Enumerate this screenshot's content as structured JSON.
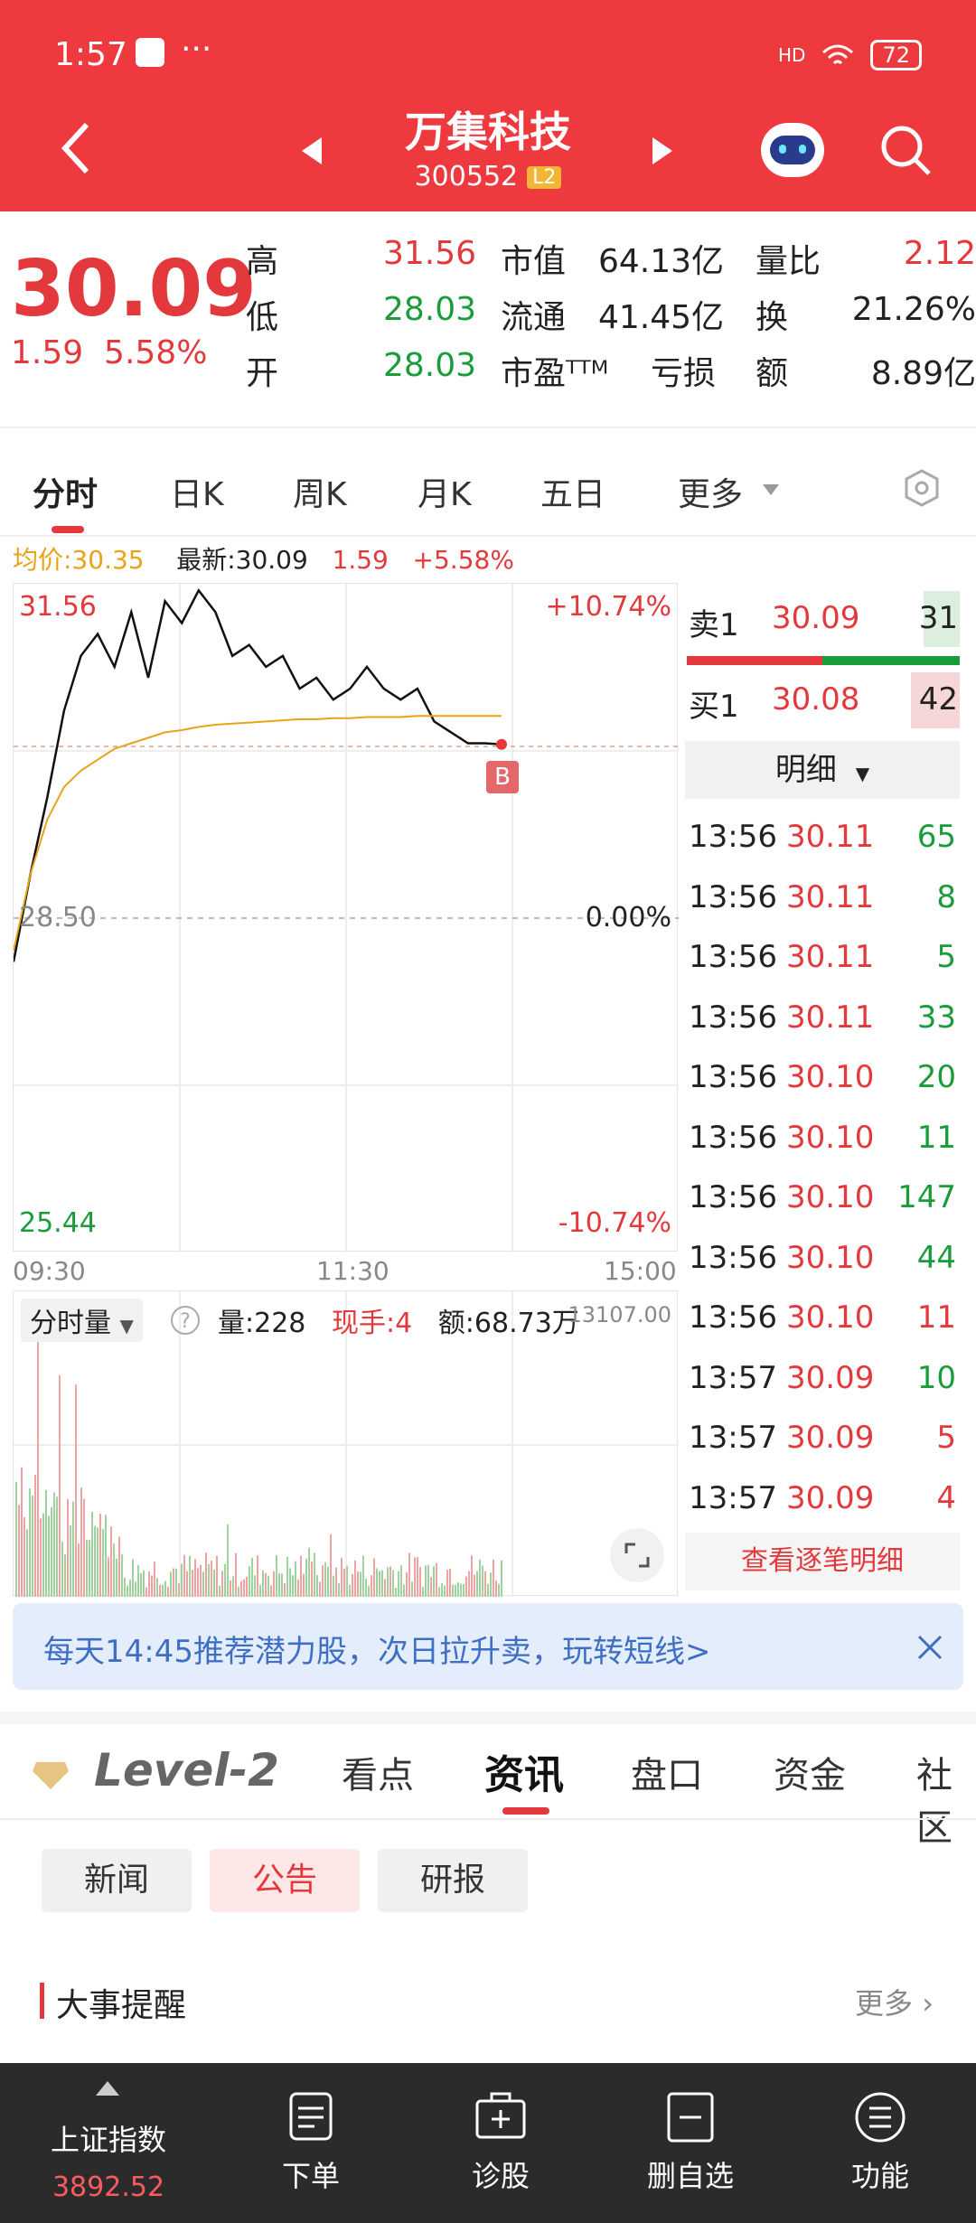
{
  "status": {
    "time": "1:57",
    "dots": "···",
    "signal": "HD",
    "battery": "72"
  },
  "header": {
    "title": "万集科技",
    "code": "300552",
    "level_tag": "L2"
  },
  "quote": {
    "price": "30.09",
    "change": "1.59",
    "change_pct": "5.58%",
    "rows": [
      {
        "l1": "高",
        "v1": "31.56",
        "l2": "市值",
        "v2": "64.13亿",
        "l3": "量比",
        "v3": "2.12"
      },
      {
        "l1": "低",
        "v1": "28.03",
        "l2": "流通",
        "v2": "41.45亿",
        "l3": "换",
        "v3": "21.26%"
      },
      {
        "l1": "开",
        "v1": "28.03",
        "l2": "市盈ᵀᵀᴹ",
        "v2": "亏损",
        "l3": "额",
        "v3": "8.89亿"
      }
    ]
  },
  "tabs": [
    "分时",
    "日K",
    "周K",
    "月K",
    "五日",
    "更多"
  ],
  "chart_info": {
    "avg_label": "均价:30.35",
    "latest_label": "最新:30.09",
    "chg": "1.59",
    "chg_pct": "+5.58%"
  },
  "chart_labels": {
    "high": "31.56",
    "high_pct": "+10.74%",
    "mid": "28.50",
    "mid_pct": "0.00%",
    "low": "25.44",
    "low_pct": "-10.74%",
    "t_start": "09:30",
    "t_mid": "11:30",
    "t_end": "15:00",
    "marker": "B"
  },
  "chart_data": {
    "type": "line",
    "title": "",
    "ylim": [
      25.44,
      31.56
    ],
    "x_ticks": [
      "09:30",
      "11:30",
      "15:00"
    ],
    "series": [
      {
        "name": "",
        "values": [
          28.1,
          28.9,
          29.6,
          30.4,
          30.9,
          31.1,
          30.8,
          31.3,
          30.7,
          31.4,
          31.2,
          31.5,
          31.3,
          30.9,
          31.0,
          30.8,
          30.9,
          30.6,
          30.7,
          30.5,
          30.6,
          30.8,
          30.6,
          30.5,
          30.6,
          30.3,
          30.2,
          30.1,
          30.1,
          30.09
        ]
      },
      {
        "name": "",
        "values": [
          28.2,
          28.9,
          29.4,
          29.7,
          29.85,
          29.95,
          30.05,
          30.1,
          30.15,
          30.2,
          30.22,
          30.25,
          30.27,
          30.28,
          30.29,
          30.3,
          30.31,
          30.32,
          30.32,
          30.33,
          30.33,
          30.34,
          30.34,
          30.34,
          30.35,
          30.35,
          30.35,
          30.35,
          30.35,
          30.35
        ]
      }
    ]
  },
  "volume": {
    "label": "分时量",
    "vol": "量:228",
    "now_hand": "现手:4",
    "amount": "额:68.73万",
    "max": "13107.00"
  },
  "orderbook": {
    "sell": {
      "label": "卖1",
      "price": "30.09",
      "qty": "31"
    },
    "buy": {
      "label": "买1",
      "price": "30.08",
      "qty": "42"
    },
    "detail_label": "明细",
    "ticks": [
      {
        "t": "13:56",
        "p": "30.11",
        "q": "65"
      },
      {
        "t": "13:56",
        "p": "30.11",
        "q": "8"
      },
      {
        "t": "13:56",
        "p": "30.11",
        "q": "5"
      },
      {
        "t": "13:56",
        "p": "30.11",
        "q": "33"
      },
      {
        "t": "13:56",
        "p": "30.10",
        "q": "20"
      },
      {
        "t": "13:56",
        "p": "30.10",
        "q": "11"
      },
      {
        "t": "13:56",
        "p": "30.10",
        "q": "147"
      },
      {
        "t": "13:56",
        "p": "30.10",
        "q": "44"
      },
      {
        "t": "13:56",
        "p": "30.10",
        "q": "11"
      },
      {
        "t": "13:57",
        "p": "30.09",
        "q": "10"
      },
      {
        "t": "13:57",
        "p": "30.09",
        "q": "5"
      },
      {
        "t": "13:57",
        "p": "30.09",
        "q": "4"
      }
    ],
    "view_all": "查看逐笔明细"
  },
  "banner": {
    "text": "每天14:45推荐潜力股，次日拉升卖，玩转短线>"
  },
  "section_tabs": {
    "brand": "Level-2",
    "items": [
      "看点",
      "资讯",
      "盘口",
      "资金",
      "社区"
    ]
  },
  "pills": [
    "新闻",
    "公告",
    "研报"
  ],
  "events": {
    "title": "大事提醒",
    "more": "更多"
  },
  "bottom_nav": {
    "index_name": "上证指数",
    "index_value": "3892.52",
    "items": [
      "下单",
      "诊股",
      "删自选",
      "功能"
    ]
  }
}
